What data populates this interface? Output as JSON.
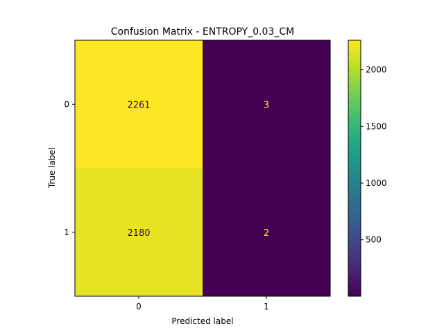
{
  "chart_data": {
    "type": "heatmap",
    "title": "Confusion Matrix - ENTROPY_0.03_CM",
    "xlabel": "Predicted label",
    "ylabel": "True label",
    "x_categories": [
      "0",
      "1"
    ],
    "y_categories": [
      "0",
      "1"
    ],
    "matrix": [
      [
        2261,
        3
      ],
      [
        2180,
        2
      ]
    ],
    "colormap": "viridis",
    "colorbar": {
      "vmin": 2,
      "vmax": 2261,
      "ticks": [
        500,
        1000,
        1500,
        2000
      ]
    },
    "colors": {
      "high_cell": "#fde725",
      "near_high_cell": "#e6e419",
      "low_cell": "#440154",
      "text_on_dark": "#fde725",
      "text_on_light": "#440154"
    }
  }
}
